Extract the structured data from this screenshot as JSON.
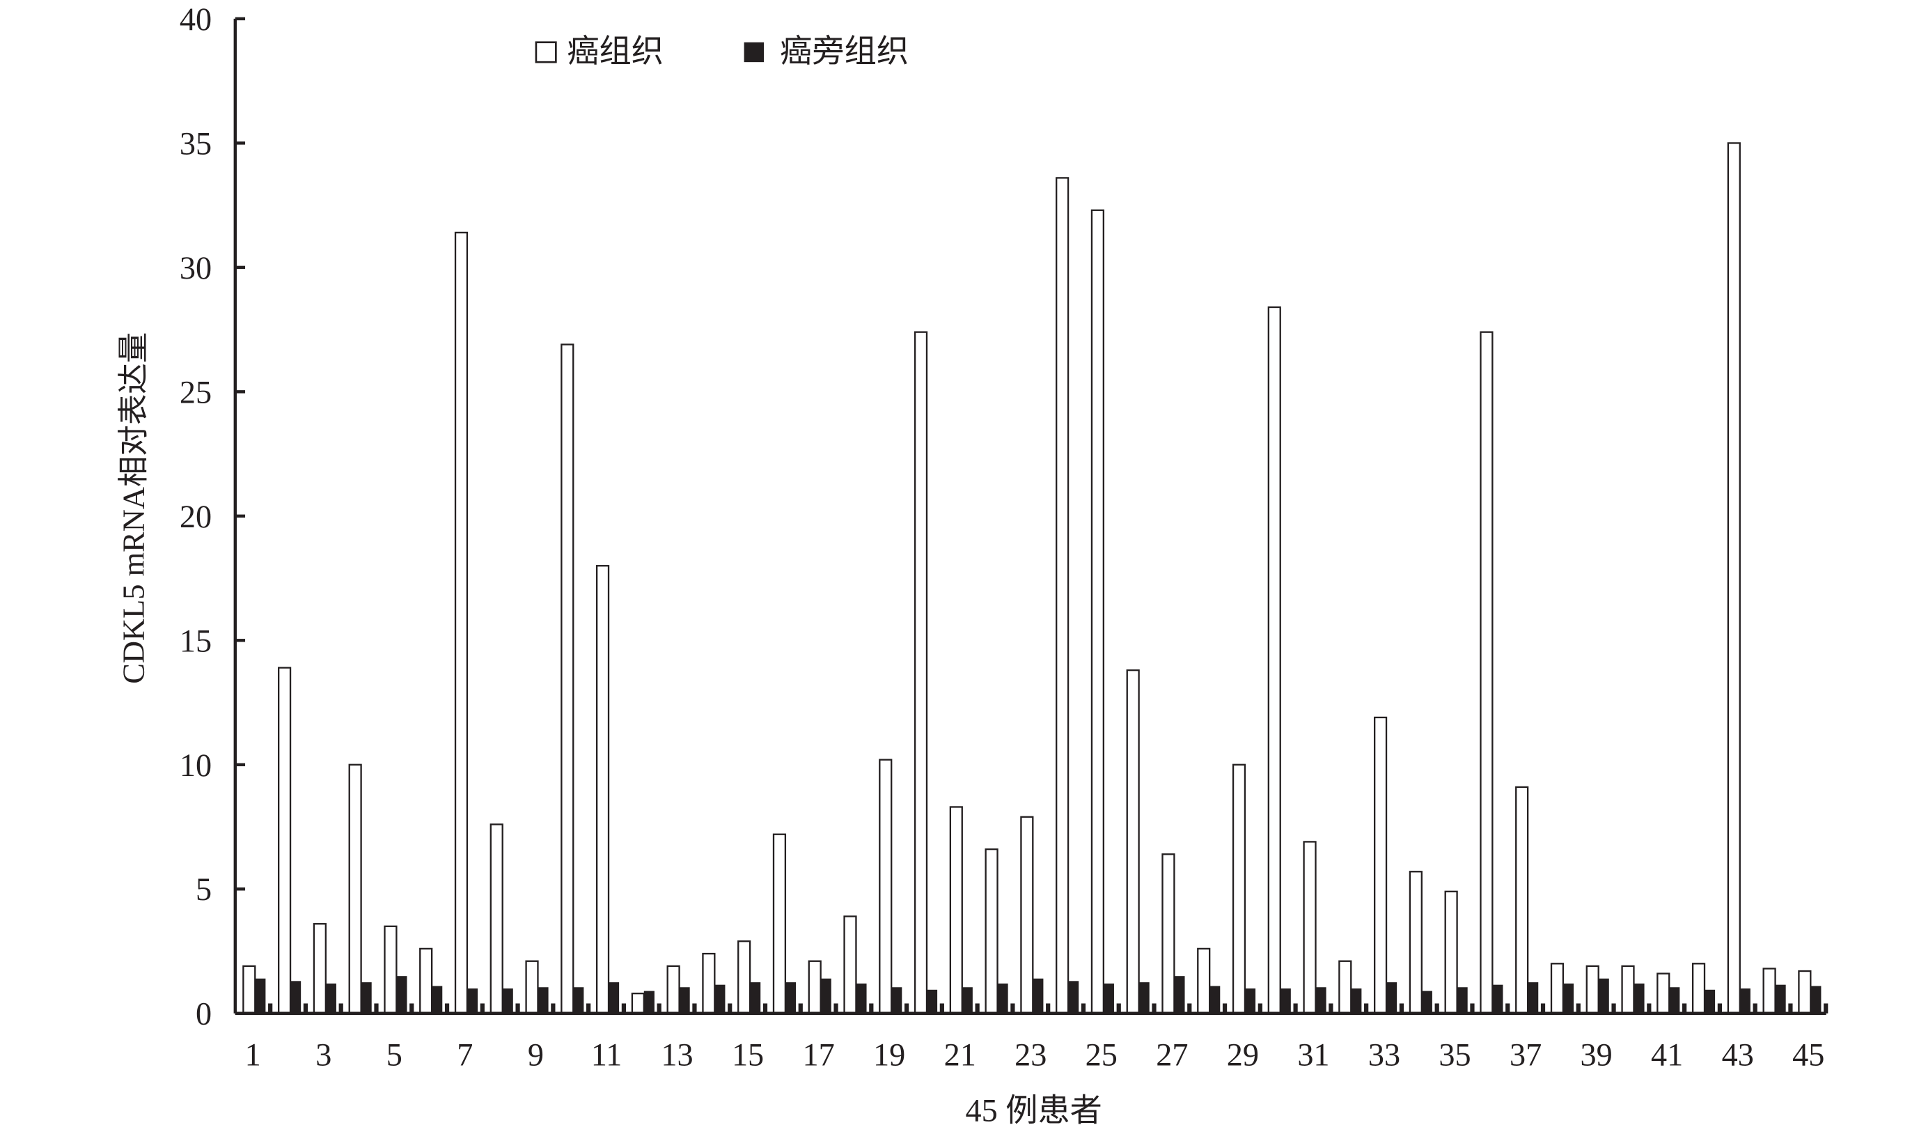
{
  "chart_data": {
    "type": "bar",
    "title": "",
    "xlabel": "45 例患者",
    "ylabel": "CDKL5 mRNA相对表达量",
    "ylim": [
      0,
      40
    ],
    "yticks": [
      "0",
      "5",
      "10",
      "15",
      "20",
      "25",
      "30",
      "35",
      "40"
    ],
    "xtick_labels": [
      "1",
      "3",
      "5",
      "7",
      "9",
      "11",
      "13",
      "15",
      "17",
      "19",
      "21",
      "23",
      "25",
      "27",
      "29",
      "31",
      "33",
      "35",
      "37",
      "39",
      "41",
      "43",
      "45"
    ],
    "categories": [
      1,
      2,
      3,
      4,
      5,
      6,
      7,
      8,
      9,
      10,
      11,
      12,
      13,
      14,
      15,
      16,
      17,
      18,
      19,
      20,
      21,
      22,
      23,
      24,
      25,
      26,
      27,
      28,
      29,
      30,
      31,
      32,
      33,
      34,
      35,
      36,
      37,
      38,
      39,
      40,
      41,
      42,
      43,
      44,
      45
    ],
    "grid": false,
    "legend_position": "top-center",
    "series": [
      {
        "name": "癌组织",
        "color": "#ffffff",
        "values": [
          1.9,
          13.9,
          3.6,
          10.0,
          3.5,
          2.6,
          31.4,
          7.6,
          2.1,
          26.9,
          18.0,
          0.8,
          1.9,
          2.4,
          2.9,
          7.2,
          2.1,
          3.9,
          10.2,
          27.4,
          8.3,
          6.6,
          7.9,
          33.6,
          32.3,
          13.8,
          6.4,
          2.6,
          10.0,
          28.4,
          6.9,
          2.1,
          11.9,
          5.7,
          4.9,
          27.4,
          9.1,
          2.0,
          1.9,
          1.9,
          1.6,
          2.0,
          35.0,
          1.8,
          1.7
        ]
      },
      {
        "name": "癌旁组织",
        "color": "#231f20",
        "values": [
          1.4,
          1.3,
          1.2,
          1.25,
          1.5,
          1.1,
          1.0,
          1.0,
          1.05,
          1.05,
          1.25,
          0.9,
          1.05,
          1.15,
          1.25,
          1.25,
          1.4,
          1.2,
          1.05,
          0.95,
          1.05,
          1.2,
          1.4,
          1.3,
          1.2,
          1.25,
          1.5,
          1.1,
          1.0,
          1.0,
          1.05,
          1.0,
          1.25,
          0.9,
          1.05,
          1.15,
          1.25,
          1.2,
          1.4,
          1.2,
          1.05,
          0.95,
          1.0,
          1.15,
          1.1
        ]
      }
    ]
  }
}
